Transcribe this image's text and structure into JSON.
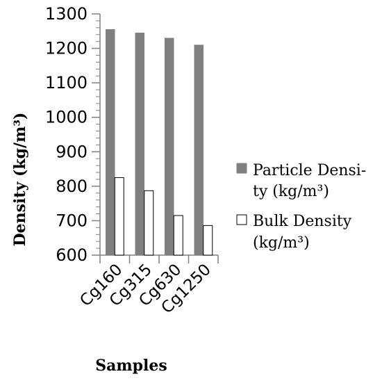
{
  "chart_data": {
    "type": "bar",
    "categories": [
      "Cg160",
      "Cg315",
      "Cg630",
      "Cg1250"
    ],
    "series": [
      {
        "name": "Particle Density (kg/m³)",
        "values": [
          1255,
          1245,
          1230,
          1210
        ],
        "color": "#808080"
      },
      {
        "name": "Bulk Density (kg/m³)",
        "values": [
          825,
          787,
          715,
          686
        ],
        "color": "#ffffff"
      }
    ],
    "xlabel": "Samples",
    "ylabel": "Density (kg/m³)",
    "ylim": [
      600,
      1300
    ],
    "yticks": [
      "600",
      "700",
      "800",
      "900",
      "1000",
      "1100",
      "1200",
      "1300"
    ],
    "grid": false,
    "legend_position": "right",
    "legend": [
      {
        "lines": [
          "Particle Densi-",
          "ty  (kg/m³)"
        ]
      },
      {
        "lines": [
          "Bulk Density",
          "(kg/m³)"
        ]
      }
    ]
  }
}
